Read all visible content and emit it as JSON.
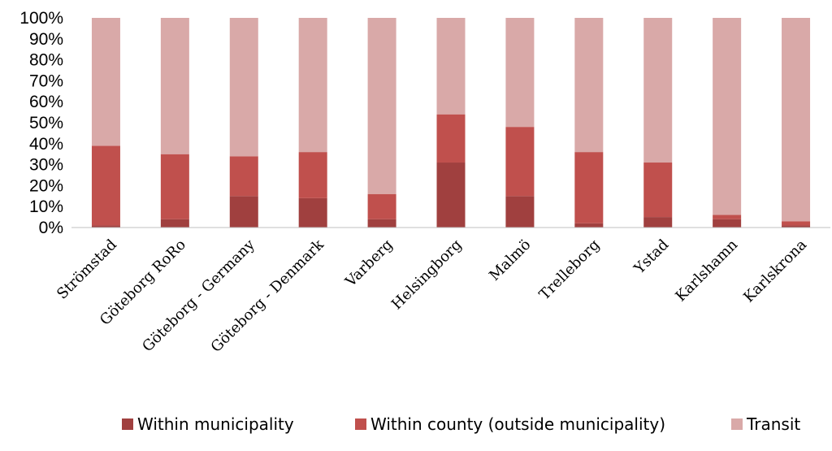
{
  "chart_data": {
    "type": "bar",
    "stacked": true,
    "percent": true,
    "categories": [
      "Strömstad",
      "Göteborg RoRo",
      "Göteborg - Germany",
      "Göteborg - Denmark",
      "Varberg",
      "Helsingborg",
      "Malmö",
      "Trelleborg",
      "Ystad",
      "Karlshamn",
      "Karlskrona"
    ],
    "series": [
      {
        "name": "Within municipality",
        "color": "#a0403f",
        "values": [
          1,
          4,
          15,
          14,
          4,
          31,
          15,
          2,
          5,
          4,
          1
        ]
      },
      {
        "name": "Within county (outside municipality)",
        "color": "#c0504d",
        "values": [
          38,
          31,
          19,
          22,
          12,
          23,
          33,
          34,
          26,
          2,
          2
        ]
      },
      {
        "name": "Transit",
        "color": "#d9a9a8",
        "values": [
          61,
          65,
          66,
          64,
          84,
          46,
          52,
          64,
          69,
          94,
          97
        ]
      }
    ],
    "ylim": [
      0,
      100
    ],
    "yticks": [
      "0%",
      "10%",
      "20%",
      "30%",
      "40%",
      "50%",
      "60%",
      "70%",
      "80%",
      "90%",
      "100%"
    ],
    "legend_position": "bottom",
    "grid": false
  }
}
